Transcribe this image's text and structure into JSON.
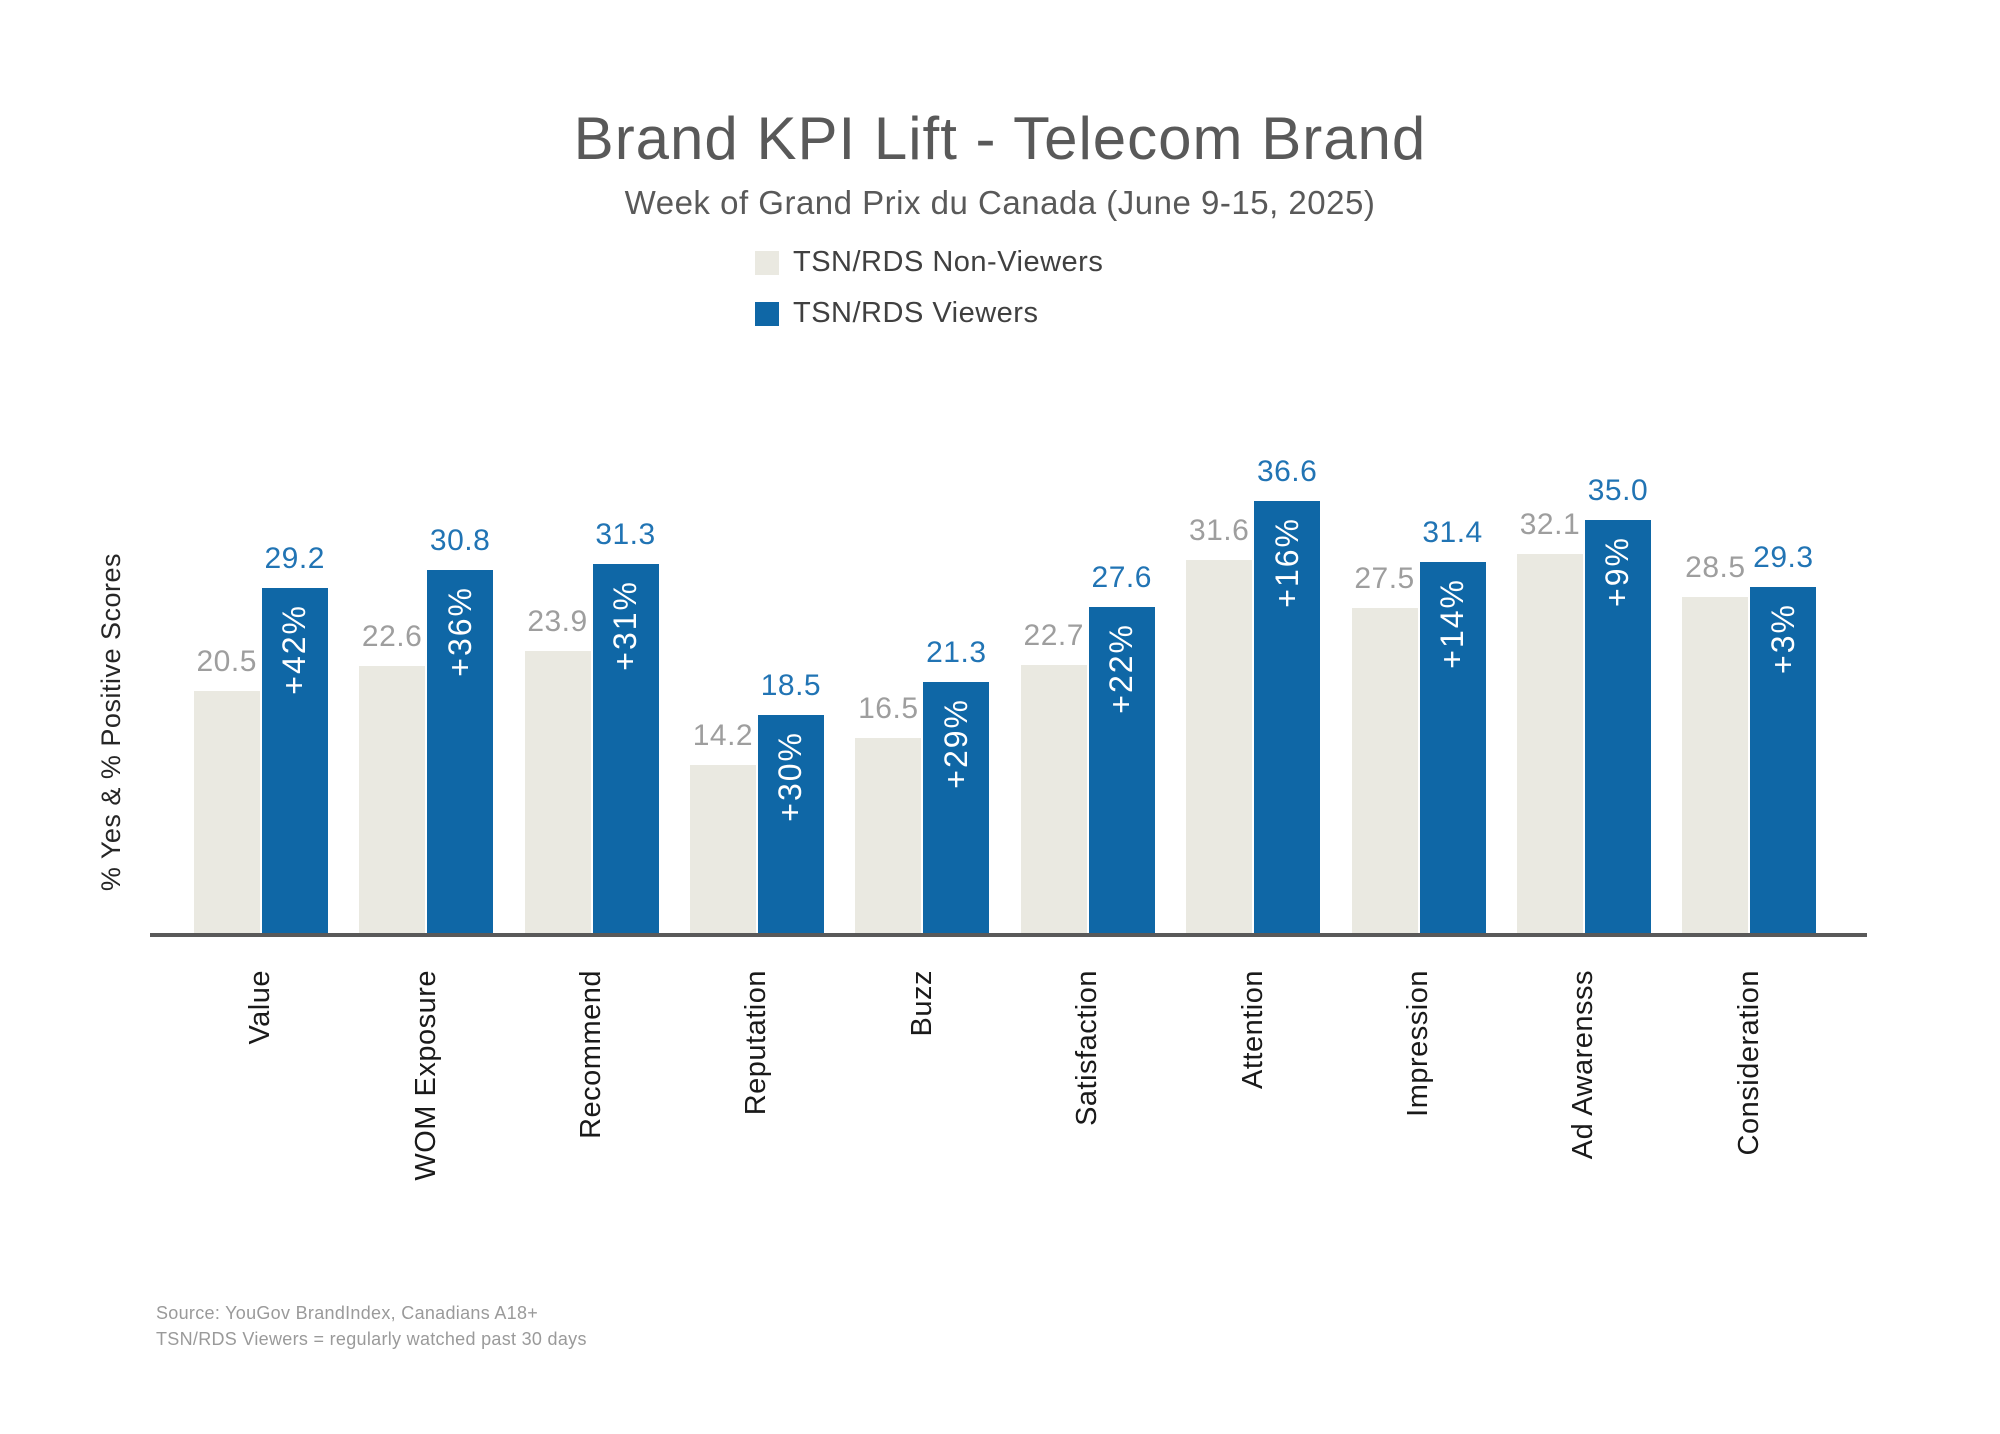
{
  "title": "Brand KPI Lift - Telecom Brand",
  "subtitle": "Week of Grand Prix du Canada (June 9-15, 2025)",
  "legend": [
    {
      "label": "TSN/RDS Non-Viewers",
      "color": "#EAE9E1"
    },
    {
      "label": "TSN/RDS Viewers",
      "color": "#0F67A6"
    }
  ],
  "source": {
    "line1": "Source: YouGov BrandIndex, Canadians A18+",
    "line2": "TSN/RDS Viewers = regularly watched past 30 days"
  },
  "chart_data": {
    "type": "bar",
    "title": "Brand KPI Lift - Telecom Brand",
    "subtitle": "Week of Grand Prix du Canada (June 9-15, 2025)",
    "ylabel": "% Yes & % Positive Scores",
    "xlabel": "",
    "ylim": [
      0,
      40
    ],
    "grid": false,
    "legend_position": "top-center",
    "categories": [
      "Value",
      "WOM Exposure",
      "Recommend",
      "Reputation",
      "Buzz",
      "Satisfaction",
      "Attention",
      "Impression",
      "Ad Awarensss",
      "Consideration"
    ],
    "series": [
      {
        "name": "TSN/RDS Non-Viewers",
        "values": [
          20.5,
          22.6,
          23.9,
          14.2,
          16.5,
          22.7,
          31.6,
          27.5,
          32.1,
          28.5
        ],
        "value_labels": [
          "20.5",
          "22.6",
          "23.9",
          "14.2",
          "16.5",
          "22.7",
          "31.6",
          "27.5",
          "32.1",
          "28.5"
        ],
        "color": "#EAE9E1",
        "label_color": "#9E9E9E"
      },
      {
        "name": "TSN/RDS Viewers",
        "values": [
          29.2,
          30.8,
          31.3,
          18.5,
          21.3,
          27.6,
          36.6,
          31.4,
          35.0,
          29.3
        ],
        "value_labels": [
          "29.2",
          "30.8",
          "31.3",
          "18.5",
          "21.3",
          "27.6",
          "36.6",
          "31.4",
          "35.0",
          "29.3"
        ],
        "color": "#0F67A6",
        "label_color": "#2174B4"
      }
    ],
    "lift_labels": [
      "+42%",
      "+36%",
      "+31%",
      "+30%",
      "+29%",
      "+22%",
      "+16%",
      "+14%",
      "+9%",
      "+3%"
    ],
    "lift_label_color": "#FFFFFF"
  }
}
